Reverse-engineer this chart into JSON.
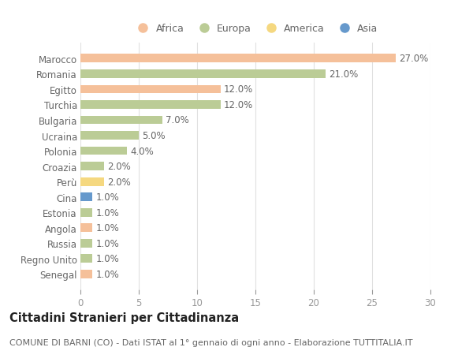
{
  "countries": [
    "Marocco",
    "Romania",
    "Egitto",
    "Turchia",
    "Bulgaria",
    "Ucraina",
    "Polonia",
    "Croazia",
    "Perù",
    "Cina",
    "Estonia",
    "Angola",
    "Russia",
    "Regno Unito",
    "Senegal"
  ],
  "values": [
    27.0,
    21.0,
    12.0,
    12.0,
    7.0,
    5.0,
    4.0,
    2.0,
    2.0,
    1.0,
    1.0,
    1.0,
    1.0,
    1.0,
    1.0
  ],
  "continents": [
    "Africa",
    "Europa",
    "Africa",
    "Europa",
    "Europa",
    "Europa",
    "Europa",
    "Europa",
    "America",
    "Asia",
    "Europa",
    "Africa",
    "Europa",
    "Europa",
    "Africa"
  ],
  "colors": {
    "Africa": "#F5C09A",
    "Europa": "#BBCC96",
    "America": "#F5D880",
    "Asia": "#6699CC"
  },
  "legend_order": [
    "Africa",
    "Europa",
    "America",
    "Asia"
  ],
  "title": "Cittadini Stranieri per Cittadinanza",
  "subtitle": "COMUNE DI BARNI (CO) - Dati ISTAT al 1° gennaio di ogni anno - Elaborazione TUTTITALIA.IT",
  "xlim": [
    0,
    30
  ],
  "xticks": [
    0,
    5,
    10,
    15,
    20,
    25,
    30
  ],
  "background_color": "#ffffff",
  "bar_height": 0.55,
  "label_fontsize": 8.5,
  "title_fontsize": 10.5,
  "subtitle_fontsize": 8,
  "tick_label_fontsize": 8.5,
  "legend_fontsize": 9
}
